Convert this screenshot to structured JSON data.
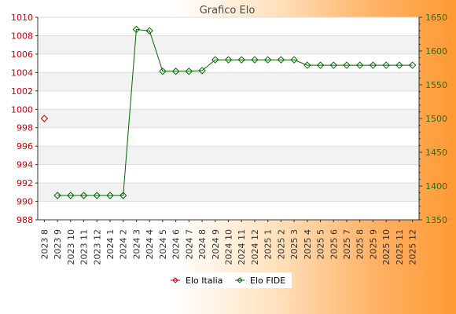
{
  "chart_data": {
    "type": "line",
    "title": "Grafico Elo",
    "categories": [
      "2023 8",
      "2023 9",
      "2023 10",
      "2023 11",
      "2023 12",
      "2024 1",
      "2024 2",
      "2024 3",
      "2024 4",
      "2024 5",
      "2024 6",
      "2024 7",
      "2024 8",
      "2024 9",
      "2024 10",
      "2024 11",
      "2024 12",
      "2025 1",
      "2025 2",
      "2025 3",
      "2025 4",
      "2025 5",
      "2025 6",
      "2025 7",
      "2025 8",
      "2025 9",
      "2025 10",
      "2025 11",
      "2025 12"
    ],
    "series": [
      {
        "name": "Elo Italia",
        "color": "#cc0000",
        "axis": "left",
        "values": [
          999,
          null,
          null,
          null,
          null,
          null,
          null,
          null,
          null,
          null,
          null,
          null,
          null,
          null,
          null,
          null,
          null,
          null,
          null,
          null,
          null,
          null,
          null,
          null,
          null,
          null,
          null,
          null,
          null
        ]
      },
      {
        "name": "Elo FIDE",
        "color": "#006600",
        "axis": "right",
        "values": [
          null,
          1386,
          1386,
          1386,
          1386,
          1386,
          1386,
          1632,
          1630,
          1570,
          1570,
          1570,
          1571,
          1587,
          1587,
          1587,
          1587,
          1587,
          1587,
          1587,
          1579,
          1579,
          1579,
          1579,
          1579,
          1579,
          1579,
          1579,
          1579
        ]
      }
    ],
    "y_left": {
      "min": 988,
      "max": 1010,
      "ticks": [
        "988",
        "990",
        "992",
        "994",
        "996",
        "998",
        "1000",
        "1002",
        "1004",
        "1006",
        "1008",
        "1010"
      ]
    },
    "y_right": {
      "min": 1350,
      "max": 1650,
      "ticks": [
        "1350",
        "1400",
        "1450",
        "1500",
        "1550",
        "1600",
        "1650"
      ]
    },
    "grid": "horizontal",
    "legend_position": "bottom-center"
  }
}
